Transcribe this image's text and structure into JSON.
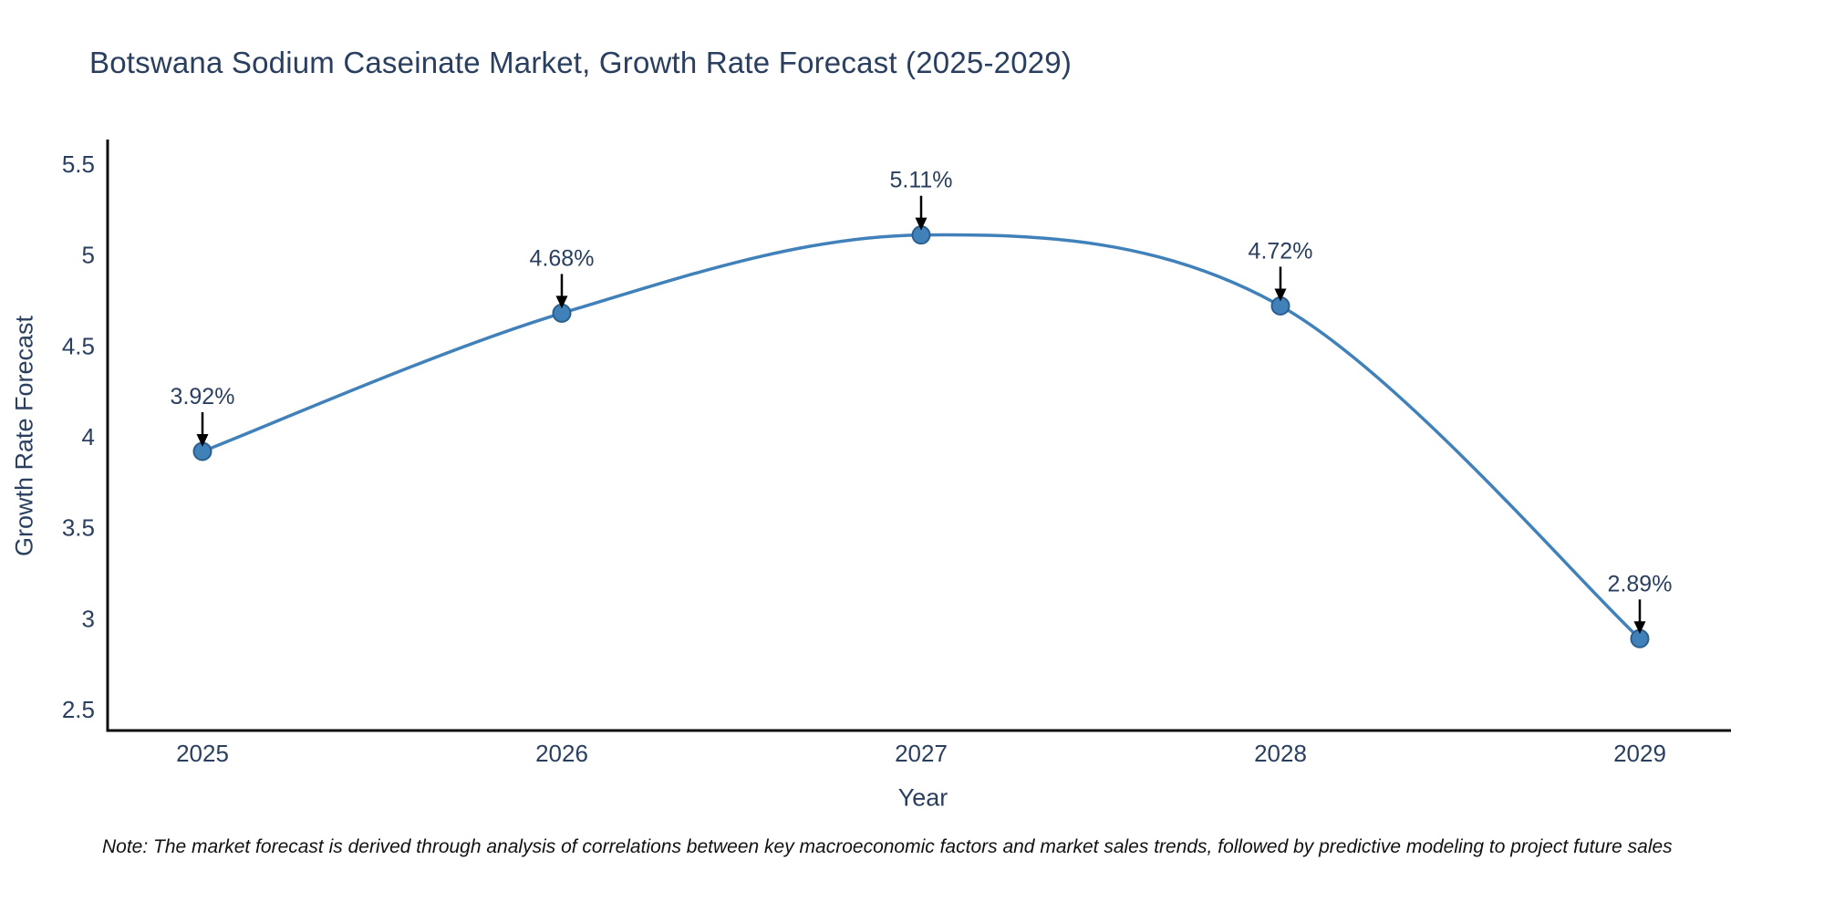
{
  "title": "Botswana Sodium Caseinate Market, Growth Rate Forecast (2025-2029)",
  "note": "Note: The market forecast is derived through analysis of correlations between key macroeconomic factors and market sales trends, followed by predictive modeling to project future sales",
  "chart_data": {
    "type": "line",
    "line_shape": "spline",
    "title": "Botswana Sodium Caseinate Market, Growth Rate Forecast (2025-2029)",
    "xlabel": "Year",
    "ylabel": "Growth Rate Forecast",
    "categories": [
      "2025",
      "2026",
      "2027",
      "2028",
      "2029"
    ],
    "values": [
      3.92,
      4.68,
      5.11,
      4.72,
      2.89
    ],
    "point_labels": [
      "3.92%",
      "4.68%",
      "5.11%",
      "4.72%",
      "2.89%"
    ],
    "ytick_labels": [
      "5.5",
      "5",
      "4.5",
      "4",
      "3.5",
      "3",
      "2.5"
    ],
    "ytick_values": [
      5.5,
      5,
      4.5,
      4,
      3.5,
      3,
      2.5
    ],
    "ylim": [
      2.385,
      5.625
    ],
    "grid": false,
    "legend": "none",
    "annotations": "black down-arrows from each percentage label to its data point"
  },
  "colors": {
    "background": "#ffffff",
    "line": "#4181b9",
    "marker_fill": "#4181b9",
    "marker_edge": "#2b5f8e",
    "axis_line": "#0d0d0d",
    "text": "#2a3f5f",
    "arrow": "#000000",
    "note_text": "#111111"
  }
}
